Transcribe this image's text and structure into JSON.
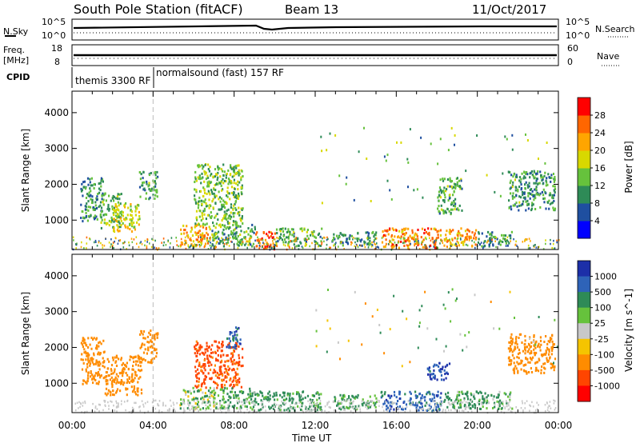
{
  "header": {
    "title": "South Pole Station (fitACF)",
    "beam": "Beam 13",
    "date": "11/Oct/2017"
  },
  "nsky_panel": {
    "left_label": "N.Sky",
    "right_label": "N.Search",
    "left_ticks": [
      "10^5",
      "10^0"
    ],
    "right_ticks": [
      "10^5",
      "10^0"
    ]
  },
  "freq_panel": {
    "left_label_1": "Freq.",
    "left_label_2": "[MHz]",
    "right_label": "Nave",
    "left_ticks": [
      "18",
      "8"
    ],
    "right_ticks": [
      "60",
      "0"
    ]
  },
  "cpid": {
    "label": "CPID",
    "segments": [
      {
        "name": "themis 3300 RF",
        "start_hour": 0
      },
      {
        "name": "normalsound (fast) 157 RF",
        "start_hour": 4
      }
    ]
  },
  "chart_data": [
    {
      "type": "heatmap",
      "title": "",
      "xlabel": "",
      "ylabel": "Slant Range [km]",
      "x_ticks": [
        "00:00",
        "04:00",
        "08:00",
        "12:00",
        "16:00",
        "20:00",
        "00:00"
      ],
      "xlim_hours": [
        0,
        24
      ],
      "y_ticks": [
        1000,
        2000,
        3000,
        4000
      ],
      "ylim": [
        180,
        4600
      ],
      "colorbar": {
        "label": "Power [dB]",
        "ticks": [
          "4",
          "8",
          "12",
          "16",
          "20",
          "24",
          "28"
        ],
        "colors": [
          "#0000ff",
          "#1f4fa0",
          "#2e8b57",
          "#66c23c",
          "#d8d800",
          "#ffa500",
          "#ff6600",
          "#ff0000"
        ]
      },
      "echo_regions": [
        {
          "x0": 0.4,
          "x1": 1.5,
          "y0": 1000,
          "y1": 2200,
          "value": 10
        },
        {
          "x0": 1.4,
          "x1": 2.4,
          "y0": 800,
          "y1": 1800,
          "value": 14
        },
        {
          "x0": 2.0,
          "x1": 3.3,
          "y0": 700,
          "y1": 1500,
          "value": 18
        },
        {
          "x0": 3.3,
          "x1": 4.2,
          "y0": 1600,
          "y1": 2400,
          "value": 12
        },
        {
          "x0": 5.3,
          "x1": 6.8,
          "y0": 300,
          "y1": 900,
          "value": 22
        },
        {
          "x0": 6.0,
          "x1": 8.4,
          "y0": 800,
          "y1": 2600,
          "value": 14
        },
        {
          "x0": 6.8,
          "x1": 9.0,
          "y0": 300,
          "y1": 900,
          "value": 12
        },
        {
          "x0": 9.0,
          "x1": 10.0,
          "y0": 200,
          "y1": 700,
          "value": 26
        },
        {
          "x0": 10.0,
          "x1": 12.3,
          "y0": 300,
          "y1": 800,
          "value": 12
        },
        {
          "x0": 12.8,
          "x1": 13.8,
          "y0": 300,
          "y1": 700,
          "value": 10
        },
        {
          "x0": 14.0,
          "x1": 15.0,
          "y0": 300,
          "y1": 700,
          "value": 10
        },
        {
          "x0": 15.2,
          "x1": 18.2,
          "y0": 250,
          "y1": 800,
          "value": 24
        },
        {
          "x0": 18.3,
          "x1": 20.0,
          "y0": 300,
          "y1": 800,
          "value": 22
        },
        {
          "x0": 20.0,
          "x1": 21.7,
          "y0": 300,
          "y1": 700,
          "value": 10
        },
        {
          "x0": 18.0,
          "x1": 19.2,
          "y0": 1200,
          "y1": 2200,
          "value": 12
        },
        {
          "x0": 21.5,
          "x1": 23.8,
          "y0": 1300,
          "y1": 2400,
          "value": 10
        }
      ]
    },
    {
      "type": "heatmap",
      "title": "",
      "xlabel": "Time UT",
      "ylabel": "Slant Range [km]",
      "x_ticks": [
        "00:00",
        "04:00",
        "08:00",
        "12:00",
        "16:00",
        "20:00",
        "00:00"
      ],
      "xlim_hours": [
        0,
        24
      ],
      "y_ticks": [
        1000,
        2000,
        3000,
        4000
      ],
      "ylim": [
        180,
        4600
      ],
      "colorbar": {
        "label": "Velocity [m s^-1]",
        "ticks": [
          "1000",
          "500",
          "100",
          "25",
          "-25",
          "-100",
          "-500",
          "-1000"
        ],
        "colors": [
          "#1c2fa8",
          "#2e63b8",
          "#2e8b57",
          "#66c23c",
          "#c8c8c8",
          "#f5c400",
          "#ff8c00",
          "#ff4500",
          "#ff0000"
        ]
      },
      "echo_regions": [
        {
          "x0": 0.4,
          "x1": 1.6,
          "y0": 1000,
          "y1": 2300,
          "value": -200
        },
        {
          "x0": 1.6,
          "x1": 3.4,
          "y0": 700,
          "y1": 1800,
          "value": -300
        },
        {
          "x0": 3.3,
          "x1": 4.2,
          "y0": 1600,
          "y1": 2500,
          "value": -150
        },
        {
          "x0": 5.3,
          "x1": 7.0,
          "y0": 300,
          "y1": 900,
          "value": 50
        },
        {
          "x0": 6.0,
          "x1": 8.4,
          "y0": 900,
          "y1": 2200,
          "value": -600
        },
        {
          "x0": 7.6,
          "x1": 8.3,
          "y0": 2000,
          "y1": 2600,
          "value": 800
        },
        {
          "x0": 7.0,
          "x1": 9.0,
          "y0": 300,
          "y1": 900,
          "value": 150
        },
        {
          "x0": 9.0,
          "x1": 12.3,
          "y0": 250,
          "y1": 800,
          "value": 200
        },
        {
          "x0": 12.8,
          "x1": 15.0,
          "y0": 300,
          "y1": 700,
          "value": 150
        },
        {
          "x0": 15.2,
          "x1": 18.2,
          "y0": 250,
          "y1": 800,
          "value": 700
        },
        {
          "x0": 18.3,
          "x1": 21.7,
          "y0": 300,
          "y1": 800,
          "value": 150
        },
        {
          "x0": 17.5,
          "x1": 18.6,
          "y0": 1100,
          "y1": 1600,
          "value": 900
        },
        {
          "x0": 21.5,
          "x1": 23.8,
          "y0": 1300,
          "y1": 2400,
          "value": -150
        }
      ]
    }
  ]
}
